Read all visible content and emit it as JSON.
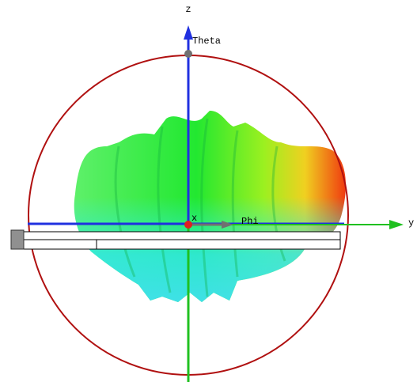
{
  "axes": {
    "z": "z",
    "theta": "Theta",
    "x": "x",
    "phi": "Phi",
    "y": "y"
  }
}
